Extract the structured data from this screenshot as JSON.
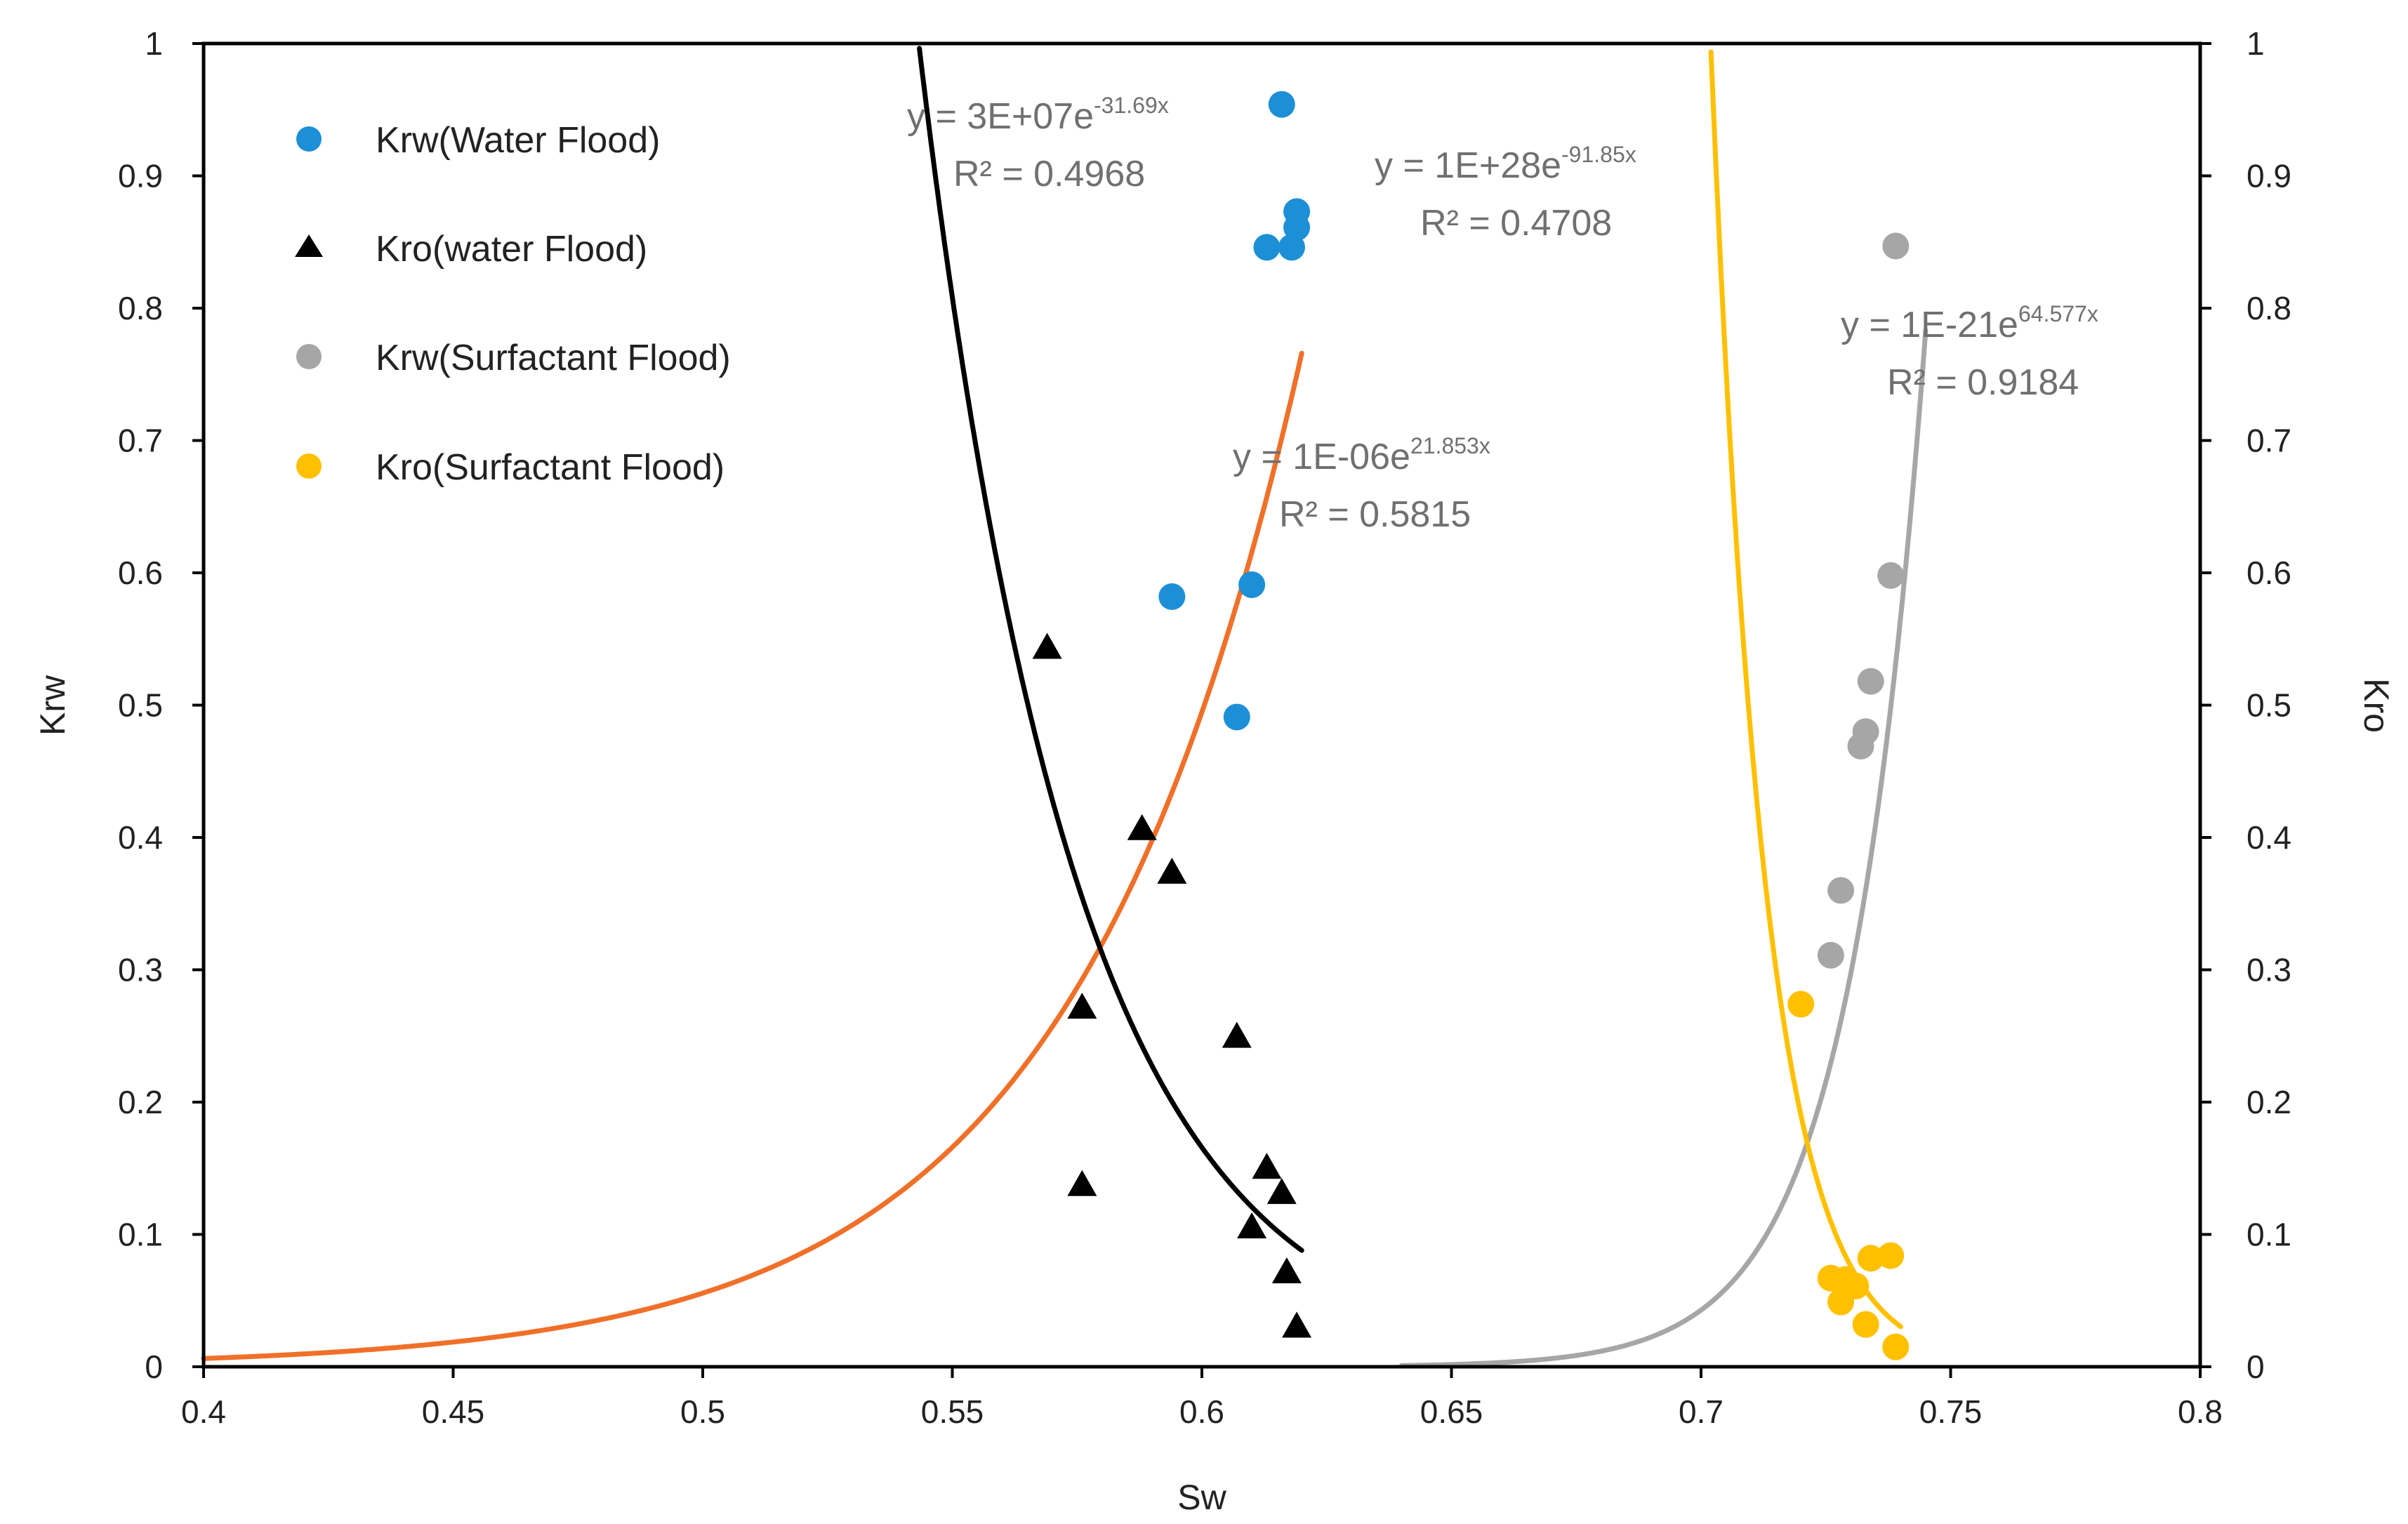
{
  "chart_data": {
    "type": "scatter",
    "title": "",
    "xlabel": "Sw",
    "ylabel": "Krw",
    "y2label": "Kro",
    "xlim": [
      0.4,
      0.8
    ],
    "ylim": [
      0,
      1
    ],
    "y2lim": [
      0,
      1
    ],
    "x_ticks": [
      "0.4",
      "0.45",
      "0.5",
      "0.55",
      "0.6",
      "0.65",
      "0.7",
      "0.75",
      "0.8"
    ],
    "y_ticks": [
      "0",
      "0.1",
      "0.2",
      "0.3",
      "0.4",
      "0.5",
      "0.6",
      "0.7",
      "0.8",
      "0.9",
      "1"
    ],
    "y2_ticks": [
      "0",
      "0.1",
      "0.2",
      "0.3",
      "0.4",
      "0.5",
      "0.6",
      "0.7",
      "0.8",
      "0.9",
      "1"
    ],
    "grid": false,
    "legend_position": "top-left",
    "series": [
      {
        "name": "Krw(Water Flood)",
        "marker": "circle",
        "color": "#1C8FD6",
        "points": [
          [
            0.594,
            0.582
          ],
          [
            0.607,
            0.491
          ],
          [
            0.61,
            0.591
          ],
          [
            0.613,
            0.846
          ],
          [
            0.616,
            0.954
          ],
          [
            0.618,
            0.846
          ],
          [
            0.619,
            0.861
          ],
          [
            0.619,
            0.873
          ]
        ]
      },
      {
        "name": "Kro(water Flood)",
        "marker": "triangle",
        "color": "#000000",
        "points": [
          [
            0.569,
            0.543
          ],
          [
            0.576,
            0.271
          ],
          [
            0.576,
            0.137
          ],
          [
            0.588,
            0.406
          ],
          [
            0.594,
            0.373
          ],
          [
            0.607,
            0.249
          ],
          [
            0.61,
            0.105
          ],
          [
            0.613,
            0.15
          ],
          [
            0.616,
            0.131
          ],
          [
            0.617,
            0.071
          ],
          [
            0.619,
            0.03
          ]
        ]
      },
      {
        "name": "Krw(Surfactant Flood)",
        "marker": "circle",
        "color": "#A6A6A6",
        "points": [
          [
            0.726,
            0.311
          ],
          [
            0.728,
            0.36
          ],
          [
            0.732,
            0.469
          ],
          [
            0.733,
            0.48
          ],
          [
            0.734,
            0.518
          ],
          [
            0.738,
            0.598
          ],
          [
            0.739,
            0.847
          ]
        ]
      },
      {
        "name": "Kro(Surfactant Flood)",
        "marker": "circle",
        "color": "#FFC000",
        "points": [
          [
            0.72,
            0.274
          ],
          [
            0.726,
            0.067
          ],
          [
            0.728,
            0.049
          ],
          [
            0.729,
            0.066
          ],
          [
            0.731,
            0.061
          ],
          [
            0.733,
            0.032
          ],
          [
            0.734,
            0.082
          ],
          [
            0.738,
            0.084
          ],
          [
            0.739,
            0.015
          ]
        ]
      }
    ],
    "trendlines": [
      {
        "series": "Krw(Water Flood)",
        "type": "exponential",
        "a": 1e-06,
        "b": 21.853,
        "x_range": [
          0.4,
          0.62
        ],
        "color": "#F07029",
        "equation_prefix": "y = 1E-06e",
        "equation_exponent": "21.853x",
        "r2_label": "R² = 0.5815"
      },
      {
        "series": "Kro(water Flood)",
        "type": "exponential",
        "a": 30000000,
        "b": -31.69,
        "x_range": [
          0.54,
          0.62
        ],
        "color": "#000000",
        "equation_prefix": "y = 3E+07e",
        "equation_exponent": "-31.69x",
        "r2_label": "R² = 0.4968"
      },
      {
        "series": "Krw(Surfactant Flood)",
        "type": "exponential",
        "a": 1e-21,
        "b": 64.577,
        "x_range": [
          0.64,
          0.745
        ],
        "color": "#A6A6A6",
        "equation_prefix": "y = 1E-21e",
        "equation_exponent": "64.577x",
        "r2_label": "R² = 0.9184"
      },
      {
        "series": "Kro(Surfactant Flood)",
        "type": "exponential",
        "a": 1e+28,
        "b": -91.85,
        "x_range": [
          0.7,
          0.74
        ],
        "color": "#FFC000",
        "equation_prefix": "y = 1E+28e",
        "equation_exponent": "-91.85x",
        "r2_label": "R² = 0.4708"
      }
    ]
  }
}
